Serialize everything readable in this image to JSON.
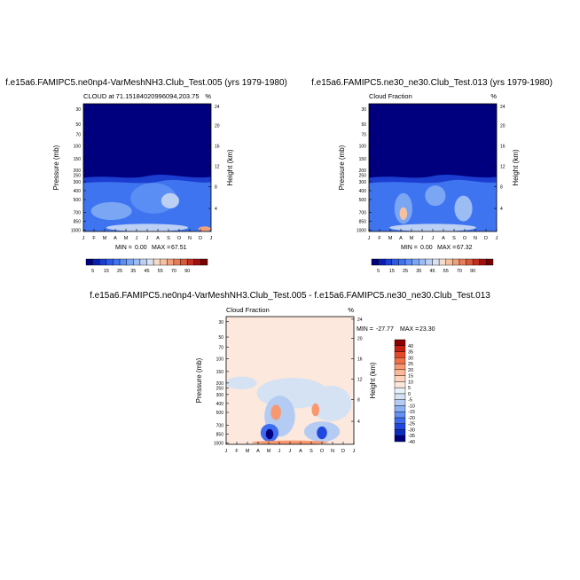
{
  "colors": {
    "top_scale": [
      "#00007f",
      "#0a1eae",
      "#1c3ed0",
      "#2c5ae4",
      "#3f74f0",
      "#5b8ef4",
      "#7aa6f4",
      "#9cbcf4",
      "#bcd0f4",
      "#d8e2f4",
      "#f4dcc8",
      "#f4c0a0",
      "#f0a07c",
      "#e87c58",
      "#d85838",
      "#c03020",
      "#a01010",
      "#780000"
    ],
    "diff_scale": [
      "#00007f",
      "#0c2cc0",
      "#2048e0",
      "#3c6cf0",
      "#6490f4",
      "#8cb0f4",
      "#b4ccf4",
      "#d4e2f4",
      "#eaf0f8",
      "#fce8dc",
      "#fcd4bc",
      "#fcb898",
      "#f89870",
      "#f07048",
      "#e44828",
      "#c82010",
      "#8c0000"
    ]
  },
  "chart_data": [
    {
      "type": "heatmap",
      "title": "f.e15a6.FAMIPC5.ne0np4-VarMeshNH3.Club_Test.005 (yrs 1979-1980)",
      "left_header": "CLOUD at 71.15184020996094,203.75",
      "right_header": "%",
      "ylabel": "Pressure (mb)",
      "y2label": "Height (km)",
      "x_ticks": [
        "J",
        "F",
        "M",
        "A",
        "M",
        "J",
        "J",
        "A",
        "S",
        "O",
        "N",
        "D",
        "J"
      ],
      "y_ticks": [
        "30",
        "50",
        "70",
        "100",
        "150",
        "200",
        "250",
        "300",
        "400",
        "500",
        "700",
        "850",
        "1000"
      ],
      "y2_ticks": [
        "24",
        "20",
        "16",
        "12",
        "8",
        "4"
      ],
      "stats": {
        "min_label": "MIN =",
        "min": "0.00",
        "max_label": "MAX =",
        "max": "67.51"
      },
      "colorbar_labels": [
        "5",
        "15",
        "25",
        "35",
        "45",
        "55",
        "70",
        "90"
      ]
    },
    {
      "type": "heatmap",
      "title": "f.e15a6.FAMIPC5.ne30_ne30.Club_Test.013 (yrs 1979-1980)",
      "left_header": "Cloud Fraction",
      "right_header": "%",
      "ylabel": "Pressure (mb)",
      "y2label": "Height (km)",
      "x_ticks": [
        "J",
        "F",
        "M",
        "A",
        "M",
        "J",
        "J",
        "A",
        "S",
        "O",
        "N",
        "D",
        "J"
      ],
      "y_ticks": [
        "30",
        "50",
        "70",
        "100",
        "150",
        "200",
        "250",
        "300",
        "400",
        "500",
        "700",
        "850",
        "1000"
      ],
      "y2_ticks": [
        "24",
        "20",
        "16",
        "12",
        "8",
        "4"
      ],
      "stats": {
        "min_label": "MIN =",
        "min": "0.00",
        "max_label": "MAX =",
        "max": "67.32"
      },
      "colorbar_labels": [
        "5",
        "15",
        "25",
        "35",
        "45",
        "55",
        "70",
        "90"
      ]
    },
    {
      "type": "heatmap",
      "title": "f.e15a6.FAMIPC5.ne0np4-VarMeshNH3.Club_Test.005 - f.e15a6.FAMIPC5.ne30_ne30.Club_Test.013",
      "left_header": "Cloud Fraction",
      "right_header": "%",
      "ylabel": "Pressure (mb)",
      "y2label": "Height (km)",
      "x_ticks": [
        "J",
        "F",
        "M",
        "A",
        "M",
        "J",
        "J",
        "A",
        "S",
        "O",
        "N",
        "D",
        "J"
      ],
      "y_ticks": [
        "30",
        "50",
        "70",
        "100",
        "150",
        "200",
        "250",
        "300",
        "400",
        "500",
        "700",
        "850",
        "1000"
      ],
      "y2_ticks": [
        "24",
        "20",
        "16",
        "12",
        "8",
        "4"
      ],
      "stats": {
        "min_label": "MIN =",
        "min": "-27.77",
        "max_label": "MAX =",
        "max": "23.30"
      },
      "colorbar_labels": [
        "40",
        "35",
        "30",
        "25",
        "20",
        "15",
        "10",
        "5",
        "0",
        "-5",
        "-10",
        "-15",
        "-20",
        "-25",
        "-30",
        "-35",
        "-40"
      ]
    }
  ]
}
